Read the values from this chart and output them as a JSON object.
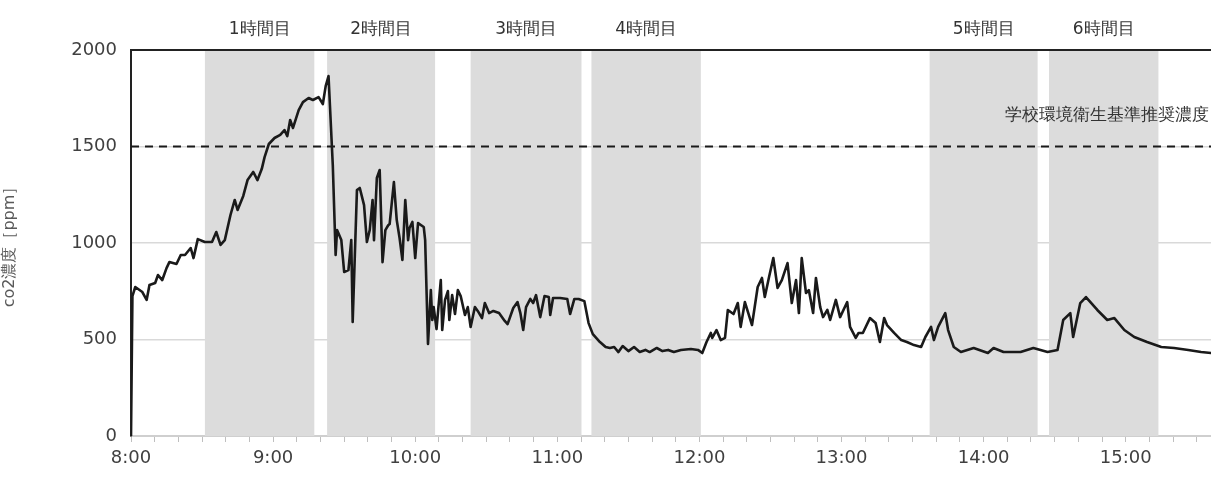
{
  "chart_data": {
    "type": "line",
    "ylabel": "co2濃度［ppm］",
    "x": [
      8.0,
      8.01,
      8.03,
      8.08,
      8.11,
      8.13,
      8.17,
      8.19,
      8.22,
      8.25,
      8.27,
      8.32,
      8.35,
      8.38,
      8.42,
      8.44,
      8.47,
      8.52,
      8.57,
      8.6,
      8.63,
      8.66,
      8.7,
      8.73,
      8.75,
      8.79,
      8.82,
      8.86,
      8.89,
      8.92,
      8.94,
      8.97,
      9.01,
      9.05,
      9.08,
      9.1,
      9.12,
      9.14,
      9.18,
      9.21,
      9.25,
      9.28,
      9.32,
      9.35,
      9.37,
      9.39,
      9.42,
      9.44,
      9.45,
      9.48,
      9.5,
      9.53,
      9.55,
      9.56,
      9.59,
      9.61,
      9.64,
      9.66,
      9.68,
      9.7,
      9.71,
      9.73,
      9.75,
      9.77,
      9.79,
      9.81,
      9.82,
      9.85,
      9.87,
      9.89,
      9.91,
      9.93,
      9.95,
      9.96,
      9.98,
      10.0,
      10.02,
      10.06,
      10.07,
      10.09,
      10.11,
      10.12,
      10.13,
      10.15,
      10.18,
      10.19,
      10.21,
      10.23,
      10.24,
      10.26,
      10.28,
      10.3,
      10.32,
      10.35,
      10.37,
      10.39,
      10.42,
      10.44,
      10.47,
      10.49,
      10.52,
      10.55,
      10.59,
      10.63,
      10.65,
      10.69,
      10.72,
      10.74,
      10.76,
      10.78,
      10.81,
      10.83,
      10.85,
      10.88,
      10.91,
      10.94,
      10.95,
      10.97,
      11.0,
      11.02,
      11.07,
      11.09,
      11.12,
      11.15,
      11.19,
      11.22,
      11.25,
      11.3,
      11.34,
      11.37,
      11.4,
      11.43,
      11.46,
      11.5,
      11.54,
      11.58,
      11.62,
      11.65,
      11.7,
      11.74,
      11.78,
      11.82,
      11.87,
      11.94,
      11.99,
      12.02,
      12.05,
      12.08,
      12.09,
      12.12,
      12.15,
      12.18,
      12.2,
      12.24,
      12.27,
      12.29,
      12.32,
      12.37,
      12.41,
      12.44,
      12.46,
      12.49,
      12.52,
      12.55,
      12.58,
      12.62,
      12.65,
      12.68,
      12.7,
      12.72,
      12.75,
      12.77,
      12.8,
      12.82,
      12.85,
      12.87,
      12.9,
      12.92,
      12.96,
      12.99,
      13.04,
      13.06,
      13.1,
      13.12,
      13.15,
      13.2,
      13.24,
      13.27,
      13.3,
      13.32,
      13.37,
      13.42,
      13.46,
      13.51,
      13.56,
      13.59,
      13.63,
      13.65,
      13.68,
      13.73,
      13.75,
      13.79,
      13.84,
      13.93,
      14.03,
      14.07,
      14.14,
      14.26,
      14.35,
      14.45,
      14.52,
      14.56,
      14.61,
      14.63,
      14.68,
      14.72,
      14.8,
      14.87,
      14.92,
      14.99,
      15.06,
      15.15,
      15.25,
      15.34,
      15.44,
      15.53,
      15.6
    ],
    "series": [
      {
        "color": "#1a1a1a",
        "values": [
          0,
          725,
          772,
          746,
          705,
          782,
          793,
          834,
          808,
          870,
          901,
          891,
          938,
          938,
          974,
          922,
          1020,
          1005,
          1005,
          1057,
          990,
          1015,
          1145,
          1223,
          1171,
          1244,
          1326,
          1368,
          1326,
          1383,
          1445,
          1513,
          1544,
          1560,
          1585,
          1554,
          1637,
          1596,
          1689,
          1730,
          1751,
          1741,
          1756,
          1720,
          1813,
          1865,
          1404,
          938,
          1067,
          1015,
          850,
          860,
          1015,
          591,
          1274,
          1285,
          1196,
          1005,
          1067,
          1223,
          1015,
          1337,
          1378,
          901,
          1067,
          1092,
          1098,
          1316,
          1119,
          1026,
          912,
          1223,
          1015,
          1078,
          1109,
          922,
          1103,
          1083,
          1015,
          477,
          756,
          601,
          668,
          554,
          808,
          549,
          705,
          751,
          601,
          730,
          632,
          756,
          725,
          627,
          668,
          565,
          668,
          648,
          611,
          689,
          637,
          648,
          637,
          596,
          580,
          663,
          694,
          637,
          549,
          668,
          710,
          689,
          730,
          616,
          725,
          720,
          627,
          715,
          715,
          715,
          710,
          632,
          710,
          710,
          699,
          585,
          528,
          487,
          461,
          456,
          461,
          435,
          466,
          440,
          461,
          435,
          446,
          435,
          456,
          440,
          446,
          435,
          446,
          451,
          446,
          430,
          487,
          534,
          508,
          549,
          497,
          508,
          653,
          632,
          689,
          565,
          694,
          575,
          772,
          819,
          720,
          824,
          922,
          767,
          808,
          896,
          689,
          808,
          637,
          922,
          741,
          756,
          637,
          819,
          668,
          616,
          653,
          601,
          705,
          616,
          694,
          565,
          508,
          534,
          534,
          611,
          585,
          487,
          611,
          575,
          534,
          497,
          487,
          471,
          461,
          513,
          565,
          497,
          565,
          637,
          549,
          461,
          435,
          456,
          430,
          456,
          435,
          435,
          456,
          435,
          446,
          601,
          637,
          513,
          689,
          720,
          653,
          601,
          611,
          549,
          513,
          487,
          461,
          456,
          446,
          435,
          430
        ]
      }
    ],
    "xlim": [
      8,
      15.6
    ],
    "xticks": [
      {
        "value": 8,
        "label": "8:00"
      },
      {
        "value": 8.167,
        "label": null
      },
      {
        "value": 8.333,
        "label": null
      },
      {
        "value": 8.5,
        "label": null
      },
      {
        "value": 8.667,
        "label": null
      },
      {
        "value": 8.833,
        "label": null
      },
      {
        "value": 9,
        "label": "9:00"
      },
      {
        "value": 9.167,
        "label": null
      },
      {
        "value": 9.333,
        "label": null
      },
      {
        "value": 9.5,
        "label": null
      },
      {
        "value": 9.667,
        "label": null
      },
      {
        "value": 9.833,
        "label": null
      },
      {
        "value": 10,
        "label": "10:00"
      },
      {
        "value": 10.167,
        "label": null
      },
      {
        "value": 10.333,
        "label": null
      },
      {
        "value": 10.5,
        "label": null
      },
      {
        "value": 10.667,
        "label": null
      },
      {
        "value": 10.833,
        "label": null
      },
      {
        "value": 11,
        "label": "11:00"
      },
      {
        "value": 11.167,
        "label": null
      },
      {
        "value": 11.333,
        "label": null
      },
      {
        "value": 11.5,
        "label": null
      },
      {
        "value": 11.667,
        "label": null
      },
      {
        "value": 11.833,
        "label": null
      },
      {
        "value": 12,
        "label": "12:00"
      },
      {
        "value": 12.167,
        "label": null
      },
      {
        "value": 12.333,
        "label": null
      },
      {
        "value": 12.5,
        "label": null
      },
      {
        "value": 12.667,
        "label": null
      },
      {
        "value": 12.833,
        "label": null
      },
      {
        "value": 13,
        "label": "13:00"
      },
      {
        "value": 13.167,
        "label": null
      },
      {
        "value": 13.333,
        "label": null
      },
      {
        "value": 13.5,
        "label": null
      },
      {
        "value": 13.667,
        "label": null
      },
      {
        "value": 13.833,
        "label": null
      },
      {
        "value": 14,
        "label": "14:00"
      },
      {
        "value": 14.167,
        "label": null
      },
      {
        "value": 14.333,
        "label": null
      },
      {
        "value": 14.5,
        "label": null
      },
      {
        "value": 14.667,
        "label": null
      },
      {
        "value": 14.833,
        "label": null
      },
      {
        "value": 15,
        "label": "15:00"
      },
      {
        "value": 15.167,
        "label": null
      },
      {
        "value": 15.333,
        "label": null
      },
      {
        "value": 15.5,
        "label": null
      }
    ],
    "ylim": [
      0,
      2000
    ],
    "yticks": [
      0,
      500,
      1000,
      1500,
      2000
    ],
    "grid": "y",
    "legend": false,
    "marker": "none",
    "line_style": "solid",
    "ref_lines": [
      {
        "axis": "y",
        "value": 1500,
        "label": "学校環境衛生基準推奨濃度",
        "color": "#1a1a1a",
        "line_style": "dashed"
      }
    ],
    "bands": [
      {
        "axis": "x",
        "from": 8.52,
        "to": 9.29,
        "label": "1時間目",
        "color": "#dcdcdc"
      },
      {
        "axis": "x",
        "from": 9.38,
        "to": 10.14,
        "label": "2時間目",
        "color": "#dcdcdc"
      },
      {
        "axis": "x",
        "from": 10.39,
        "to": 11.17,
        "label": "3時間目",
        "color": "#dcdcdc"
      },
      {
        "axis": "x",
        "from": 11.24,
        "to": 12.01,
        "label": "4時間目",
        "color": "#dcdcdc"
      },
      {
        "axis": "x",
        "from": 13.62,
        "to": 14.38,
        "label": "5時間目",
        "color": "#dcdcdc"
      },
      {
        "axis": "x",
        "from": 14.46,
        "to": 15.23,
        "label": "6時間目",
        "color": "#dcdcdc"
      }
    ]
  }
}
